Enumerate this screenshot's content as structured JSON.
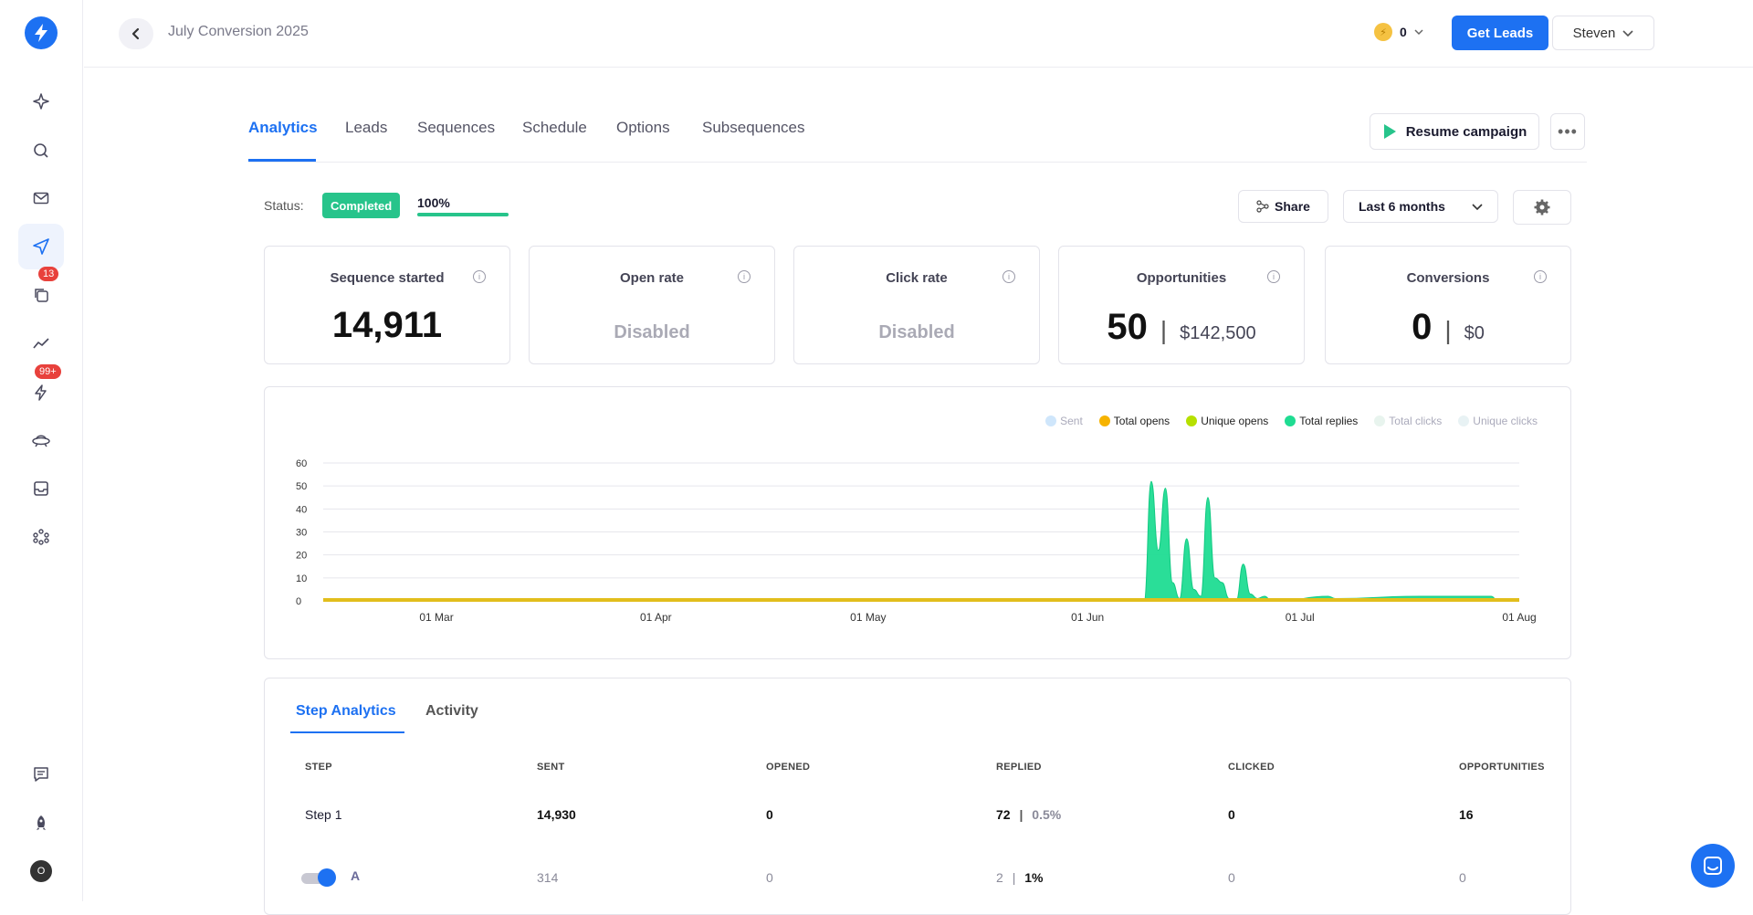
{
  "header": {
    "title": "July Conversion 2025",
    "credits": "0",
    "get_leads": "Get Leads",
    "user": "Steven"
  },
  "sidebar": {
    "badges": {
      "subsequences": "13",
      "alerts": "99+"
    },
    "avatar": "O"
  },
  "tabs": [
    "Analytics",
    "Leads",
    "Sequences",
    "Schedule",
    "Options",
    "Subsequences"
  ],
  "actions": {
    "resume": "Resume campaign",
    "more": "•••",
    "share": "Share",
    "range": "Last 6 months"
  },
  "status": {
    "label": "Status:",
    "value": "Completed",
    "progress_text": "100%",
    "progress": 1.0
  },
  "cards": {
    "sequence_started": {
      "title": "Sequence started",
      "value": "14,911"
    },
    "open_rate": {
      "title": "Open rate",
      "value": "Disabled"
    },
    "click_rate": {
      "title": "Click rate",
      "value": "Disabled"
    },
    "opportunities": {
      "title": "Opportunities",
      "value": "50",
      "amount": "$142,500"
    },
    "conversions": {
      "title": "Conversions",
      "value": "0",
      "amount": "$0"
    }
  },
  "chart_data": {
    "type": "area",
    "title": "",
    "xlabel": "",
    "ylabel": "",
    "ylim": [
      0,
      60
    ],
    "yticks": [
      0,
      10,
      20,
      30,
      40,
      50,
      60
    ],
    "xticks": [
      "01 Mar",
      "01 Apr",
      "01 May",
      "01 Jun",
      "01 Jul",
      "01 Aug"
    ],
    "legend_position": "top-right",
    "legend": [
      {
        "name": "Sent",
        "color": "#cfe6fb",
        "muted": true
      },
      {
        "name": "Total opens",
        "color": "#f6b300",
        "muted": false
      },
      {
        "name": "Unique opens",
        "color": "#b6e000",
        "muted": false
      },
      {
        "name": "Total replies",
        "color": "#1fdc92",
        "muted": false
      },
      {
        "name": "Total clicks",
        "color": "#e8f4ee",
        "muted": true
      },
      {
        "name": "Unique clicks",
        "color": "#e8f2f4",
        "muted": true
      }
    ],
    "series": [
      {
        "name": "Total replies",
        "color": "#1fdc92",
        "points": [
          [
            "09 Jun",
            0
          ],
          [
            "10 Jun",
            52
          ],
          [
            "11 Jun",
            22
          ],
          [
            "12 Jun",
            49
          ],
          [
            "13 Jun",
            8
          ],
          [
            "14 Jun",
            1
          ],
          [
            "15 Jun",
            27
          ],
          [
            "16 Jun",
            5
          ],
          [
            "17 Jun",
            2
          ],
          [
            "18 Jun",
            45
          ],
          [
            "19 Jun",
            10
          ],
          [
            "20 Jun",
            8
          ],
          [
            "21 Jun",
            1
          ],
          [
            "22 Jun",
            0
          ],
          [
            "23 Jun",
            16
          ],
          [
            "24 Jun",
            3
          ],
          [
            "25 Jun",
            1
          ],
          [
            "26 Jun",
            2
          ],
          [
            "27 Jun",
            0
          ],
          [
            "28 Jun",
            0
          ],
          [
            "05 Jul",
            2
          ],
          [
            "06 Jul",
            1
          ],
          [
            "18 Jul",
            2
          ],
          [
            "28 Jul",
            2
          ],
          [
            "29 Jul",
            0
          ]
        ]
      },
      {
        "name": "Total opens",
        "color": "#e2be1c",
        "constant": 0
      }
    ]
  },
  "step_tabs": [
    "Step Analytics",
    "Activity"
  ],
  "table": {
    "headers": [
      "STEP",
      "SENT",
      "OPENED",
      "REPLIED",
      "CLICKED",
      "OPPORTUNITIES"
    ],
    "rows": [
      {
        "step": "Step 1",
        "sent": "14,930",
        "opened": "0",
        "replied": "72",
        "replied_pct": "0.5%",
        "clicked": "0",
        "opportunities": "16"
      },
      {
        "step": "A",
        "sent": "314",
        "opened": "0",
        "replied": "2",
        "replied_pct": "1%",
        "clicked": "0",
        "opportunities": "0"
      }
    ]
  },
  "colors": {
    "accent": "#1d71f2",
    "success": "#27c48b",
    "danger": "#e8413c"
  }
}
